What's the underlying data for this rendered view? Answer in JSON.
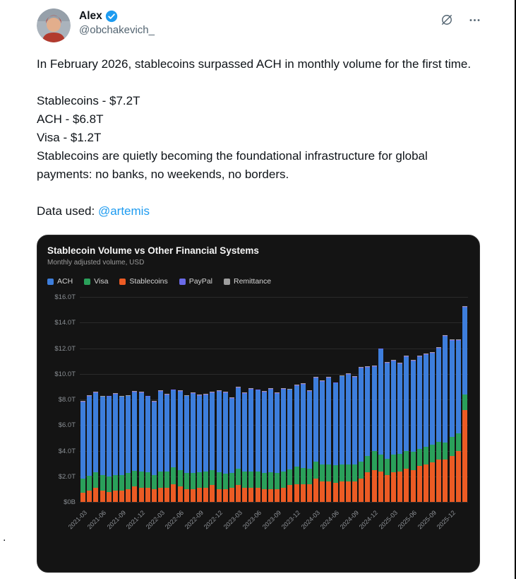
{
  "tweet": {
    "author": {
      "name": "Alex",
      "handle": "@obchakevich_",
      "verified": true
    },
    "icons": {
      "grok": "slashed-circle-icon",
      "more": "more-horizontal-icon",
      "verified": "verified-badge-icon"
    },
    "body": {
      "para1": "In February 2026, stablecoins surpassed ACH in monthly volume for the first time.",
      "stats": [
        "Stablecoins - $7.2T",
        "ACH - $6.8T",
        "Visa - $1.2T"
      ],
      "para2": "Stablecoins are quietly becoming the foundational infrastructure for global payments: no banks, no weekends, no borders.",
      "data_used_label": "Data used: ",
      "data_used_link": "@artemis"
    },
    "stray_period": "."
  },
  "colors": {
    "accent": "#1d9bf0",
    "text": "#0f1419",
    "secondary": "#536471",
    "card_bg": "#141414"
  },
  "chart_data": {
    "type": "bar",
    "stacked": true,
    "title": "Stablecoin Volume vs Other Financial Systems",
    "subtitle": "Monthly adjusted volume, USD",
    "unit": "USD trillions",
    "ylim": [
      0,
      16
    ],
    "grid": true,
    "legend_position": "top",
    "y_ticks": [
      {
        "label": "$16.0T",
        "value": 16
      },
      {
        "label": "$14.0T",
        "value": 14
      },
      {
        "label": "$12.0T",
        "value": 12
      },
      {
        "label": "$10.0T",
        "value": 10
      },
      {
        "label": "$8.0T",
        "value": 8
      },
      {
        "label": "$6.0T",
        "value": 6
      },
      {
        "label": "$4.0T",
        "value": 4
      },
      {
        "label": "$2.0T",
        "value": 2
      },
      {
        "label": "$0B",
        "value": 0
      }
    ],
    "categories": [
      "2021-03",
      "2021-04",
      "2021-05",
      "2021-06",
      "2021-07",
      "2021-08",
      "2021-09",
      "2021-10",
      "2021-11",
      "2021-12",
      "2022-01",
      "2022-02",
      "2022-03",
      "2022-04",
      "2022-05",
      "2022-06",
      "2022-07",
      "2022-08",
      "2022-09",
      "2022-10",
      "2022-11",
      "2022-12",
      "2023-01",
      "2023-02",
      "2023-03",
      "2023-04",
      "2023-05",
      "2023-06",
      "2023-07",
      "2023-08",
      "2023-09",
      "2023-10",
      "2023-11",
      "2023-12",
      "2024-01",
      "2024-02",
      "2024-03",
      "2024-04",
      "2024-05",
      "2024-06",
      "2024-07",
      "2024-08",
      "2024-09",
      "2024-10",
      "2024-11",
      "2024-12",
      "2025-01",
      "2025-02",
      "2025-03",
      "2025-04",
      "2025-05",
      "2025-06",
      "2025-07",
      "2025-08",
      "2025-09",
      "2025-10",
      "2025-11",
      "2025-12",
      "2026-01",
      "2026-02"
    ],
    "x_ticks": [
      {
        "index": 0,
        "label": "2021-03"
      },
      {
        "index": 3,
        "label": "2021-06"
      },
      {
        "index": 6,
        "label": "2021-09"
      },
      {
        "index": 9,
        "label": "2021-12"
      },
      {
        "index": 12,
        "label": "2022-03"
      },
      {
        "index": 15,
        "label": "2022-06"
      },
      {
        "index": 18,
        "label": "2022-09"
      },
      {
        "index": 21,
        "label": "2022-12"
      },
      {
        "index": 24,
        "label": "2023-03"
      },
      {
        "index": 27,
        "label": "2023-06"
      },
      {
        "index": 30,
        "label": "2023-09"
      },
      {
        "index": 33,
        "label": "2023-12"
      },
      {
        "index": 36,
        "label": "2024-03"
      },
      {
        "index": 39,
        "label": "2024-06"
      },
      {
        "index": 42,
        "label": "2024-09"
      },
      {
        "index": 45,
        "label": "2024-12"
      },
      {
        "index": 48,
        "label": "2025-03"
      },
      {
        "index": 51,
        "label": "2025-06"
      },
      {
        "index": 54,
        "label": "2025-09"
      },
      {
        "index": 57,
        "label": "2025-12"
      }
    ],
    "stack_order": [
      "Stablecoins",
      "Visa",
      "ACH",
      "PayPal",
      "Remittance"
    ],
    "series": [
      {
        "name": "ACH",
        "color": "#3d7edc",
        "values": [
          6.0,
          6.2,
          6.2,
          6.1,
          6.2,
          6.3,
          6.1,
          6.0,
          6.1,
          6.1,
          5.9,
          5.7,
          6.2,
          6.0,
          6.0,
          6.1,
          6.0,
          6.2,
          6.0,
          6.0,
          6.0,
          6.3,
          6.3,
          5.8,
          6.3,
          6.1,
          6.4,
          6.3,
          6.3,
          6.5,
          6.2,
          6.4,
          6.2,
          6.3,
          6.5,
          6.0,
          6.5,
          6.5,
          6.7,
          6.4,
          6.9,
          7.0,
          6.8,
          7.3,
          6.9,
          6.6,
          8.2,
          7.45,
          7.3,
          7.0,
          7.3,
          7.1,
          7.15,
          7.2,
          7.15,
          7.3,
          8.25,
          7.5,
          7.25,
          6.8
        ]
      },
      {
        "name": "Visa",
        "color": "#2aa05a",
        "values": [
          1.1,
          1.15,
          1.2,
          1.2,
          1.2,
          1.2,
          1.2,
          1.25,
          1.25,
          1.3,
          1.2,
          1.1,
          1.3,
          1.25,
          1.3,
          1.3,
          1.25,
          1.25,
          1.2,
          1.25,
          1.2,
          1.3,
          1.2,
          1.15,
          1.3,
          1.25,
          1.3,
          1.3,
          1.25,
          1.3,
          1.25,
          1.3,
          1.25,
          1.35,
          1.25,
          1.2,
          1.35,
          1.3,
          1.35,
          1.35,
          1.3,
          1.35,
          1.3,
          1.35,
          1.3,
          1.45,
          1.3,
          1.25,
          1.4,
          1.35,
          1.4,
          1.4,
          1.35,
          1.4,
          1.35,
          1.4,
          1.35,
          1.5,
          1.35,
          1.2
        ]
      },
      {
        "name": "Stablecoins",
        "color": "#ec5b24",
        "values": [
          0.7,
          0.9,
          1.1,
          0.9,
          0.8,
          0.9,
          0.9,
          1.0,
          1.2,
          1.1,
          1.1,
          1.0,
          1.1,
          1.1,
          1.4,
          1.2,
          1.0,
          1.0,
          1.1,
          1.1,
          1.3,
          1.0,
          1.0,
          1.1,
          1.3,
          1.1,
          1.1,
          1.1,
          1.0,
          1.0,
          1.0,
          1.1,
          1.3,
          1.4,
          1.4,
          1.4,
          1.8,
          1.6,
          1.6,
          1.5,
          1.6,
          1.6,
          1.6,
          1.8,
          2.3,
          2.5,
          2.4,
          2.1,
          2.3,
          2.4,
          2.6,
          2.5,
          2.8,
          2.9,
          3.1,
          3.3,
          3.3,
          3.6,
          4.0,
          7.2
        ]
      },
      {
        "name": "PayPal",
        "color": "#6a6ae8",
        "constant_value": 0.05
      },
      {
        "name": "Remittance",
        "color": "#9e9e9e",
        "constant_value": 0.05
      }
    ]
  }
}
